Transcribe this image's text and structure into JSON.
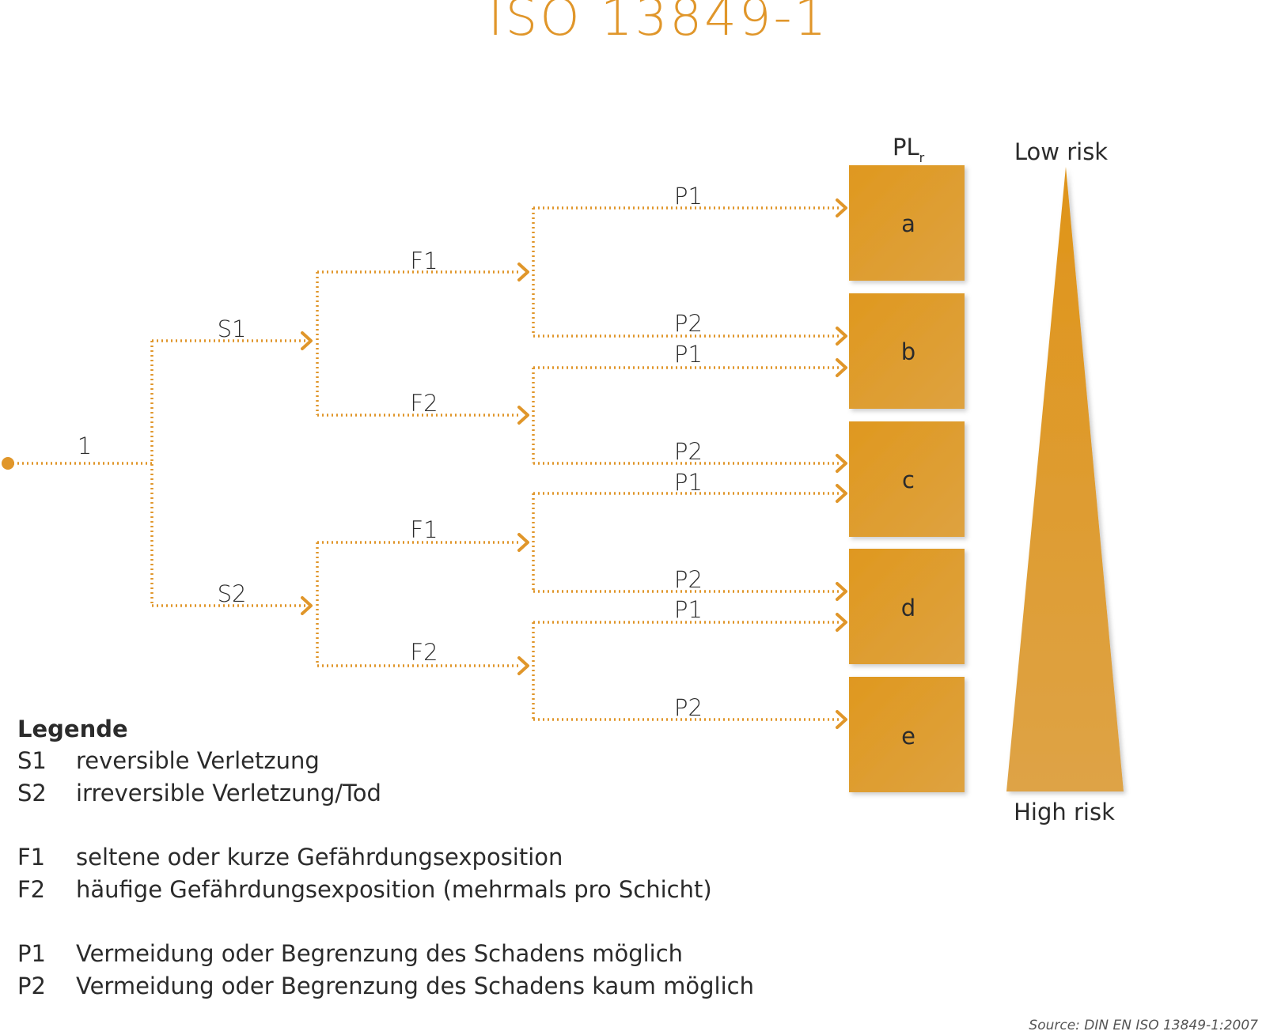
{
  "title": "ISO 13849-1",
  "start_label": "1",
  "plr_label": {
    "main": "PL",
    "sub": "r"
  },
  "risk": {
    "low": "Low risk",
    "high": "High risk"
  },
  "levels": [
    "a",
    "b",
    "c",
    "d",
    "e"
  ],
  "branches": {
    "s1": "S1",
    "s2": "S2",
    "f1_upper": "F1",
    "f2_upper": "F2",
    "f1_lower": "F1",
    "f2_lower": "F2",
    "p_labels": [
      "P1",
      "P2",
      "P1",
      "P2",
      "P1",
      "P2",
      "P1",
      "P2"
    ]
  },
  "legend": {
    "title": "Legende",
    "groups": [
      [
        {
          "code": "S1",
          "text": "reversible Verletzung"
        },
        {
          "code": "S2",
          "text": "irreversible Verletzung/Tod"
        }
      ],
      [
        {
          "code": "F1",
          "text": "seltene oder kurze Gefährdungsexposition"
        },
        {
          "code": "F2",
          "text": "häufige Gefährdungsexposition (mehrmals pro Schicht)"
        }
      ],
      [
        {
          "code": "P1",
          "text": "Vermeidung oder Begrenzung des Schadens möglich"
        },
        {
          "code": "P2",
          "text": "Vermeidung oder Begrenzung des Schadens kaum möglich"
        }
      ]
    ]
  },
  "source": "Source: DIN EN ISO 13849-1:2007",
  "colors": {
    "accent": "#e0962a",
    "box": "#de9a2e",
    "text": "#2b2b2b"
  }
}
